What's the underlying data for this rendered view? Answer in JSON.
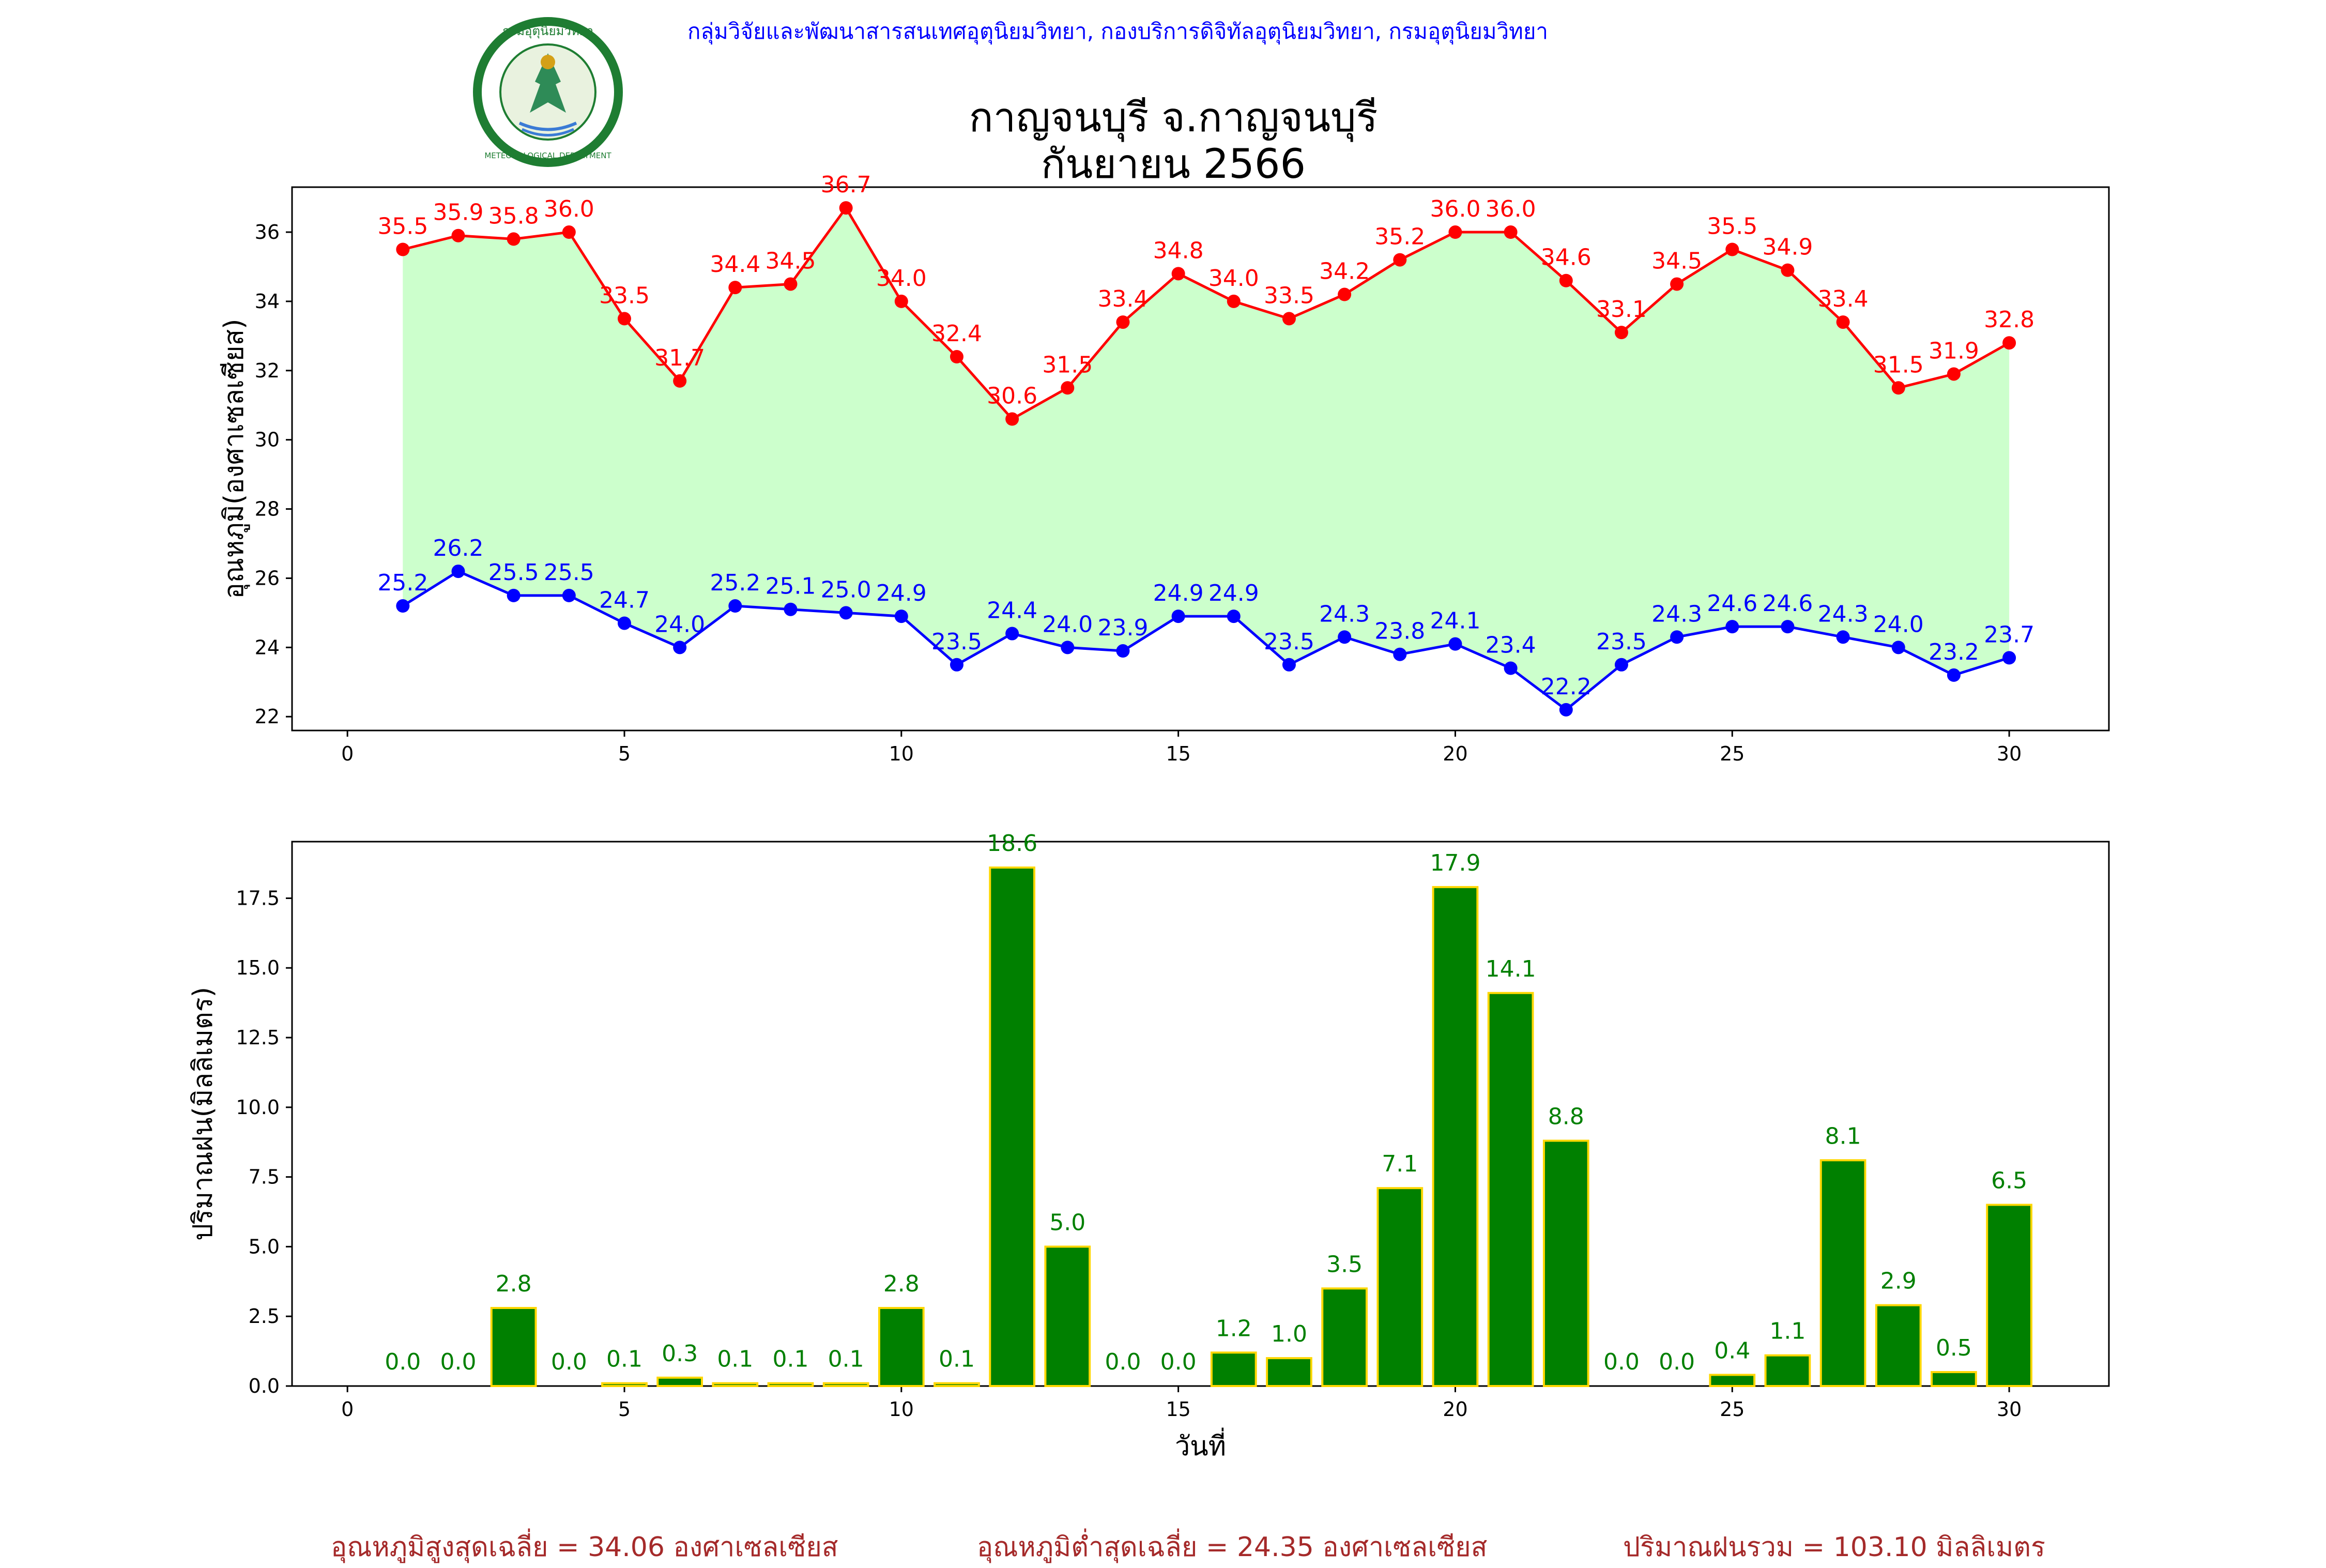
{
  "header": {
    "org": "กลุ่มวิจัยและพัฒนาสารสนเทศอุตุนิยมวิทยา, กองบริการดิจิทัลอุตุนิยมวิทยา, กรมอุตุนิยมวิทยา",
    "title_line1": "กาญจนบุรี จ.กาญจนบุรี",
    "title_line2": "กันยายน 2566",
    "logo_text_top": "กรมอุตุนิยมวิทยา",
    "logo_text_bottom": "METEOROLOGICAL DEPARTMENT"
  },
  "colors": {
    "max": "#ff0000",
    "min": "#0000ff",
    "fill": "#ccffcc",
    "bar": "#008000",
    "bar_edge": "#ffd700",
    "footer": "#a52a2a",
    "header": "#0000ff"
  },
  "chart_data": [
    {
      "type": "line",
      "ylabel": "อุณหภูมิ(องศาเซลเซียส)",
      "xlim": [
        -1,
        31.8
      ],
      "ylim": [
        21.6,
        37.3
      ],
      "xticks": [
        0,
        5,
        10,
        15,
        20,
        25,
        30
      ],
      "yticks": [
        22,
        24,
        26,
        28,
        30,
        32,
        34,
        36
      ],
      "x": [
        1,
        2,
        3,
        4,
        5,
        6,
        7,
        8,
        9,
        10,
        11,
        12,
        13,
        14,
        15,
        16,
        17,
        18,
        19,
        20,
        21,
        22,
        23,
        24,
        25,
        26,
        27,
        28,
        29,
        30
      ],
      "series": [
        {
          "values": [
            35.5,
            35.9,
            35.8,
            36.0,
            33.5,
            31.7,
            34.4,
            34.5,
            36.7,
            34.0,
            32.4,
            30.6,
            31.5,
            33.4,
            34.8,
            34.0,
            33.5,
            34.2,
            35.2,
            36.0,
            36.0,
            34.6,
            33.1,
            34.5,
            35.5,
            34.9,
            33.4,
            31.5,
            31.9,
            32.8
          ]
        },
        {
          "values": [
            25.2,
            26.2,
            25.5,
            25.5,
            24.7,
            24.0,
            25.2,
            25.1,
            25.0,
            24.9,
            23.5,
            24.4,
            24.0,
            23.9,
            24.9,
            24.9,
            23.5,
            24.3,
            23.8,
            24.1,
            23.4,
            22.2,
            23.5,
            24.3,
            24.6,
            24.6,
            24.3,
            24.0,
            23.2,
            23.7
          ]
        }
      ]
    },
    {
      "type": "bar",
      "ylabel": "ปริมาณฝน(มิลลิเมตร)",
      "xlabel": "วันที่",
      "xlim": [
        -1,
        31.8
      ],
      "ylim": [
        0,
        19.53
      ],
      "xticks": [
        0,
        5,
        10,
        15,
        20,
        25,
        30
      ],
      "yticks": [
        0.0,
        2.5,
        5.0,
        7.5,
        10.0,
        12.5,
        15.0,
        17.5
      ],
      "x": [
        1,
        2,
        3,
        4,
        5,
        6,
        7,
        8,
        9,
        10,
        11,
        12,
        13,
        14,
        15,
        16,
        17,
        18,
        19,
        20,
        21,
        22,
        23,
        24,
        25,
        26,
        27,
        28,
        29,
        30
      ],
      "values": [
        0.0,
        0.0,
        2.8,
        0.0,
        0.1,
        0.3,
        0.1,
        0.1,
        0.1,
        2.8,
        0.1,
        18.6,
        5.0,
        0.0,
        0.0,
        1.2,
        1.0,
        3.5,
        7.1,
        17.9,
        14.1,
        8.8,
        0.0,
        0.0,
        0.4,
        1.1,
        8.1,
        2.9,
        0.5,
        6.5
      ]
    }
  ],
  "footer": {
    "avg_max": "อุณหภูมิสูงสุดเฉลี่ย = 34.06 องศาเซลเซียส",
    "avg_min": "อุณหภูมิต่ำสุดเฉลี่ย = 24.35 องศาเซลเซียส",
    "rain_total": "ปริมาณฝนรวม = 103.10 มิลลิเมตร"
  }
}
